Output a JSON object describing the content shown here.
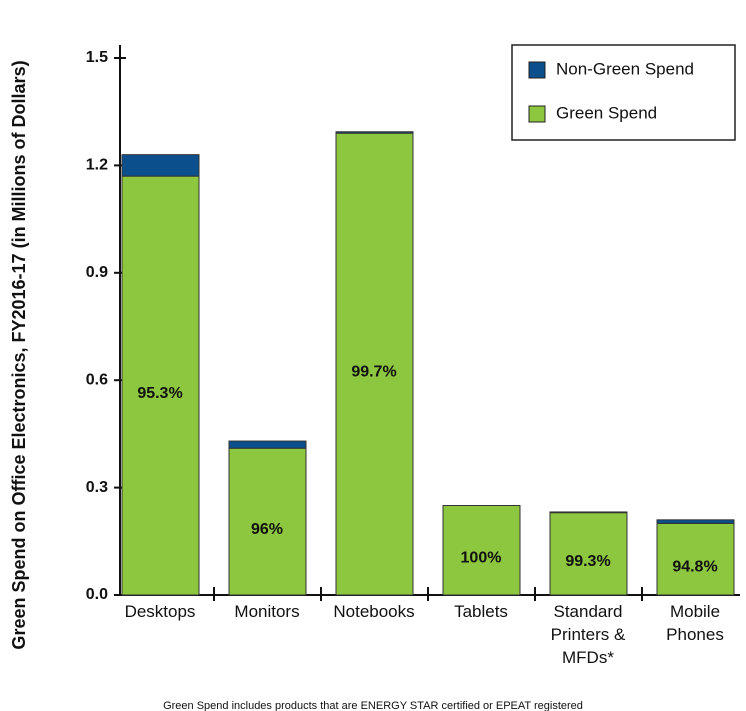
{
  "chart_data": {
    "type": "stacked_bar",
    "y_label": "Green Spend on Office Electronics, FY2016-17  (in Millions of Dollars)",
    "categories": [
      "Desktops",
      "Monitors",
      "Notebooks",
      "Tablets",
      "Standard Printers & MFDs*",
      "Mobile Phones"
    ],
    "series": [
      {
        "name": "Non-Green Spend",
        "color": "#0b4f8c",
        "values": [
          0.06,
          0.02,
          0.004,
          0,
          0.002,
          0.01
        ]
      },
      {
        "name": "Green Spend",
        "color": "#8dc63f",
        "values": [
          1.17,
          0.41,
          1.29,
          0.25,
          0.23,
          0.2
        ]
      }
    ],
    "percent_labels": [
      "95.3%",
      "96%",
      "99.7%",
      "100%",
      "99.3%",
      "94.8%"
    ],
    "ylim": [
      0,
      1.5
    ],
    "yticks": [
      {
        "value": 0,
        "label": "0.0"
      },
      0.3,
      0.6,
      0.9,
      1.2,
      1.5
    ],
    "footnote": "Green Spend includes products that are ENERGY STAR certified or EPEAT registered"
  }
}
